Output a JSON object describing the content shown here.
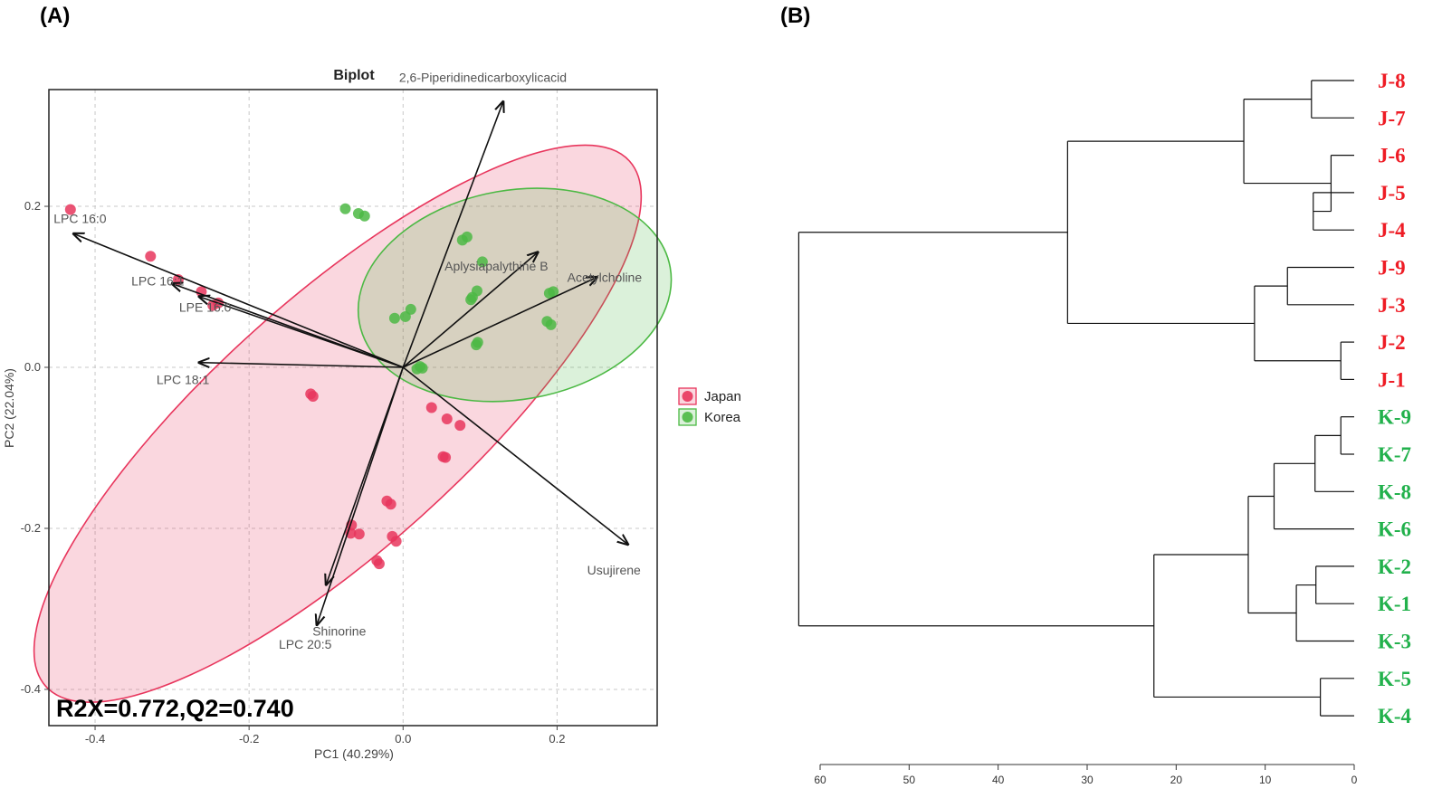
{
  "panels": {
    "a_label": "(A)",
    "b_label": "(B)"
  },
  "chart_data": [
    {
      "type": "scatter",
      "subtype": "pca-biplot",
      "title": "Biplot",
      "xlabel": "PC1 (40.29%)",
      "ylabel": "PC2 (22.04%)",
      "xlim": [
        -0.46,
        0.33
      ],
      "ylim": [
        -0.445,
        0.345
      ],
      "xticks": [
        -0.4,
        -0.2,
        0.0,
        0.2
      ],
      "yticks": [
        -0.4,
        -0.2,
        0.0,
        0.2
      ],
      "xtick_labels": [
        "-0.4",
        "-0.2",
        "0.0",
        "0.2"
      ],
      "ytick_labels": [
        "-0.4",
        "-0.2",
        "0.0",
        "0.2"
      ],
      "grid": true,
      "legend_position": "right",
      "annotation": "R2X=0.772,Q2=0.740",
      "series": [
        {
          "name": "Japan",
          "color": "#e8365d",
          "points": [
            [
              -0.432,
              0.196
            ],
            [
              -0.328,
              0.138
            ],
            [
              -0.292,
              0.109
            ],
            [
              -0.262,
              0.094
            ],
            [
              -0.247,
              0.077
            ],
            [
              -0.24,
              0.08
            ],
            [
              -0.12,
              -0.033
            ],
            [
              -0.117,
              -0.036
            ],
            [
              0.037,
              -0.05
            ],
            [
              0.057,
              -0.064
            ],
            [
              0.074,
              -0.072
            ],
            [
              0.052,
              -0.111
            ],
            [
              0.055,
              -0.112
            ],
            [
              -0.021,
              -0.166
            ],
            [
              -0.016,
              -0.17
            ],
            [
              -0.067,
              -0.196
            ],
            [
              -0.068,
              -0.206
            ],
            [
              -0.057,
              -0.207
            ],
            [
              -0.014,
              -0.21
            ],
            [
              -0.009,
              -0.216
            ],
            [
              -0.034,
              -0.24
            ],
            [
              -0.031,
              -0.244
            ]
          ],
          "ellipse": {
            "cx": -0.085,
            "cy": -0.07,
            "rx": 0.51,
            "ry": 0.155,
            "angle_deg": -42
          }
        },
        {
          "name": "Korea",
          "color": "#4cb944",
          "points": [
            [
              -0.075,
              0.197
            ],
            [
              -0.058,
              0.191
            ],
            [
              -0.05,
              0.188
            ],
            [
              0.077,
              0.158
            ],
            [
              0.083,
              0.162
            ],
            [
              0.103,
              0.131
            ],
            [
              0.096,
              0.095
            ],
            [
              0.088,
              0.084
            ],
            [
              0.09,
              0.087
            ],
            [
              0.19,
              0.092
            ],
            [
              0.195,
              0.094
            ],
            [
              0.187,
              0.057
            ],
            [
              0.192,
              0.053
            ],
            [
              -0.011,
              0.061
            ],
            [
              0.003,
              0.063
            ],
            [
              0.01,
              0.072
            ],
            [
              0.095,
              0.028
            ],
            [
              0.097,
              0.031
            ],
            [
              0.018,
              -0.002
            ],
            [
              0.022,
              0.001
            ],
            [
              0.025,
              -0.001
            ]
          ],
          "ellipse": {
            "cx": 0.145,
            "cy": 0.09,
            "rx": 0.205,
            "ry": 0.13,
            "angle_deg": -10
          }
        }
      ],
      "loadings": [
        {
          "name": "LPC 16:0",
          "x": -0.428,
          "y": 0.166
        },
        {
          "name": "LPC 16:1",
          "x": -0.3,
          "y": 0.104
        },
        {
          "name": "LPE 16:0",
          "x": -0.265,
          "y": 0.088
        },
        {
          "name": "LPC 18:1",
          "x": -0.265,
          "y": 0.006
        },
        {
          "name": "2,6-Piperidinedicarboxylicacid",
          "x": 0.13,
          "y": 0.33
        },
        {
          "name": "Aplysiapalythine B",
          "x": 0.175,
          "y": 0.143
        },
        {
          "name": "Acetylcholine",
          "x": 0.252,
          "y": 0.112
        },
        {
          "name": "Usujirene",
          "x": 0.292,
          "y": -0.22
        },
        {
          "name": "Shinorine",
          "x": -0.1,
          "y": -0.27
        },
        {
          "name": "LPC 20:5",
          "x": -0.112,
          "y": -0.32
        }
      ]
    },
    {
      "type": "dendrogram",
      "xlim": [
        60,
        0
      ],
      "xticks": [
        60,
        50,
        40,
        30,
        20,
        10,
        0
      ],
      "xtick_labels": [
        "60",
        "50",
        "40",
        "30",
        "20",
        "10",
        "0"
      ],
      "leaves": [
        {
          "label": "J-8",
          "group": "Japan",
          "color": "#ee1c25"
        },
        {
          "label": "J-7",
          "group": "Japan",
          "color": "#ee1c25"
        },
        {
          "label": "J-6",
          "group": "Japan",
          "color": "#ee1c25"
        },
        {
          "label": "J-5",
          "group": "Japan",
          "color": "#ee1c25"
        },
        {
          "label": "J-4",
          "group": "Japan",
          "color": "#ee1c25"
        },
        {
          "label": "J-9",
          "group": "Japan",
          "color": "#ee1c25"
        },
        {
          "label": "J-3",
          "group": "Japan",
          "color": "#ee1c25"
        },
        {
          "label": "J-2",
          "group": "Japan",
          "color": "#ee1c25"
        },
        {
          "label": "J-1",
          "group": "Japan",
          "color": "#ee1c25"
        },
        {
          "label": "K-9",
          "group": "Korea",
          "color": "#22b14c"
        },
        {
          "label": "K-7",
          "group": "Korea",
          "color": "#22b14c"
        },
        {
          "label": "K-8",
          "group": "Korea",
          "color": "#22b14c"
        },
        {
          "label": "K-6",
          "group": "Korea",
          "color": "#22b14c"
        },
        {
          "label": "K-2",
          "group": "Korea",
          "color": "#22b14c"
        },
        {
          "label": "K-1",
          "group": "Korea",
          "color": "#22b14c"
        },
        {
          "label": "K-3",
          "group": "Korea",
          "color": "#22b14c"
        },
        {
          "label": "K-5",
          "group": "Korea",
          "color": "#22b14c"
        },
        {
          "label": "K-4",
          "group": "Korea",
          "color": "#22b14c"
        }
      ],
      "merges": [
        {
          "a": "J-8",
          "b": "J-7",
          "height": 4.8
        },
        {
          "a": "J-5",
          "b": "J-4",
          "height": 4.6
        },
        {
          "a": "J-6",
          "b": [
            "J-5",
            "J-4"
          ],
          "height": 2.6
        },
        {
          "a": [
            "J-8",
            "J-7"
          ],
          "b": [
            "J-6",
            "J-5",
            "J-4"
          ],
          "height": 12.4
        },
        {
          "a": "J-9",
          "b": "J-3",
          "height": 7.5
        },
        {
          "a": "J-2",
          "b": "J-1",
          "height": 1.5
        },
        {
          "a": [
            "J-9",
            "J-3"
          ],
          "b": [
            "J-2",
            "J-1"
          ],
          "height": 11.2
        },
        {
          "a": [
            "J-8",
            "J-7",
            "J-6",
            "J-5",
            "J-4"
          ],
          "b": [
            "J-9",
            "J-3",
            "J-2",
            "J-1"
          ],
          "height": 32.2
        },
        {
          "a": "K-9",
          "b": "K-7",
          "height": 1.5
        },
        {
          "a": [
            "K-9",
            "K-7"
          ],
          "b": "K-8",
          "height": 4.4
        },
        {
          "a": [
            "K-9",
            "K-7",
            "K-8"
          ],
          "b": "K-6",
          "height": 9.0
        },
        {
          "a": "K-2",
          "b": "K-1",
          "height": 4.3
        },
        {
          "a": [
            "K-2",
            "K-1"
          ],
          "b": "K-3",
          "height": 6.5
        },
        {
          "a": [
            "K-9",
            "K-7",
            "K-8",
            "K-6"
          ],
          "b": [
            "K-2",
            "K-1",
            "K-3"
          ],
          "height": 11.9
        },
        {
          "a": "K-5",
          "b": "K-4",
          "height": 3.8
        },
        {
          "a": [
            "K-9",
            "K-7",
            "K-8",
            "K-6",
            "K-2",
            "K-1",
            "K-3"
          ],
          "b": [
            "K-5",
            "K-4"
          ],
          "height": 22.5
        },
        {
          "a": [
            "J-8",
            "J-7",
            "J-6",
            "J-5",
            "J-4",
            "J-9",
            "J-3",
            "J-2",
            "J-1"
          ],
          "b": [
            "K-9",
            "K-7",
            "K-8",
            "K-6",
            "K-2",
            "K-1",
            "K-3",
            "K-5",
            "K-4"
          ],
          "height": 62.4
        }
      ]
    }
  ]
}
